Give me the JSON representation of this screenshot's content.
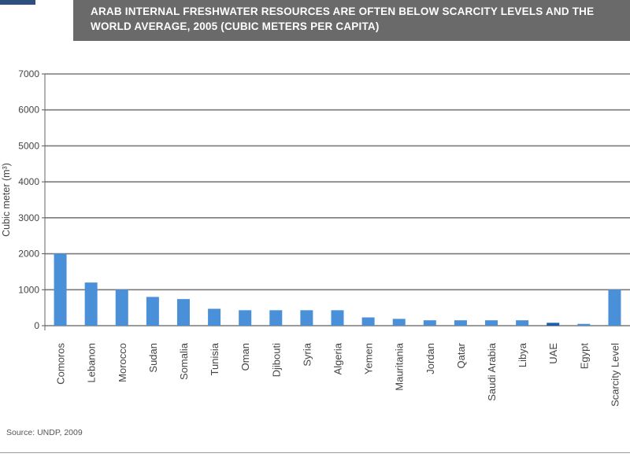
{
  "header": {
    "title": "ARAB INTERNAL FRESHWATER RESOURCES ARE OFTEN BELOW SCARCITY LEVELS AND THE WORLD AVERAGE, 2005 (CUBIC METERS PER CAPITA)"
  },
  "footer": {
    "source": "Source: UNDP, 2009"
  },
  "colors": {
    "bar": "#4a90d9",
    "bar_highlight": "#1f5ea8",
    "grid": "#7a7a7a",
    "title_bg": "#6a6a6a"
  },
  "chart_data": {
    "type": "bar",
    "title": "ARAB INTERNAL FRESHWATER RESOURCES ARE OFTEN BELOW SCARCITY LEVELS AND THE WORLD AVERAGE, 2005 (CUBIC METERS PER CAPITA)",
    "xlabel": "",
    "ylabel": "Cubic meter (m³)",
    "ylim": [
      0,
      7000
    ],
    "yticks": [
      0,
      1000,
      2000,
      3000,
      4000,
      5000,
      6000,
      7000
    ],
    "grid": true,
    "categories": [
      "Comoros",
      "Lebanon",
      "Morocco",
      "Sudan",
      "Somalia",
      "Tunisia",
      "Oman",
      "Djibouti",
      "Syria",
      "Algeria",
      "Yemen",
      "Mauritania",
      "Jordan",
      "Qatar",
      "Saudi Arabia",
      "Libya",
      "UAE",
      "Egypt",
      "Scarcity Level"
    ],
    "values": [
      2000,
      1200,
      1000,
      800,
      740,
      470,
      430,
      430,
      430,
      430,
      230,
      190,
      150,
      150,
      150,
      150,
      80,
      50,
      1000
    ],
    "highlight_categories": [
      "UAE"
    ]
  }
}
